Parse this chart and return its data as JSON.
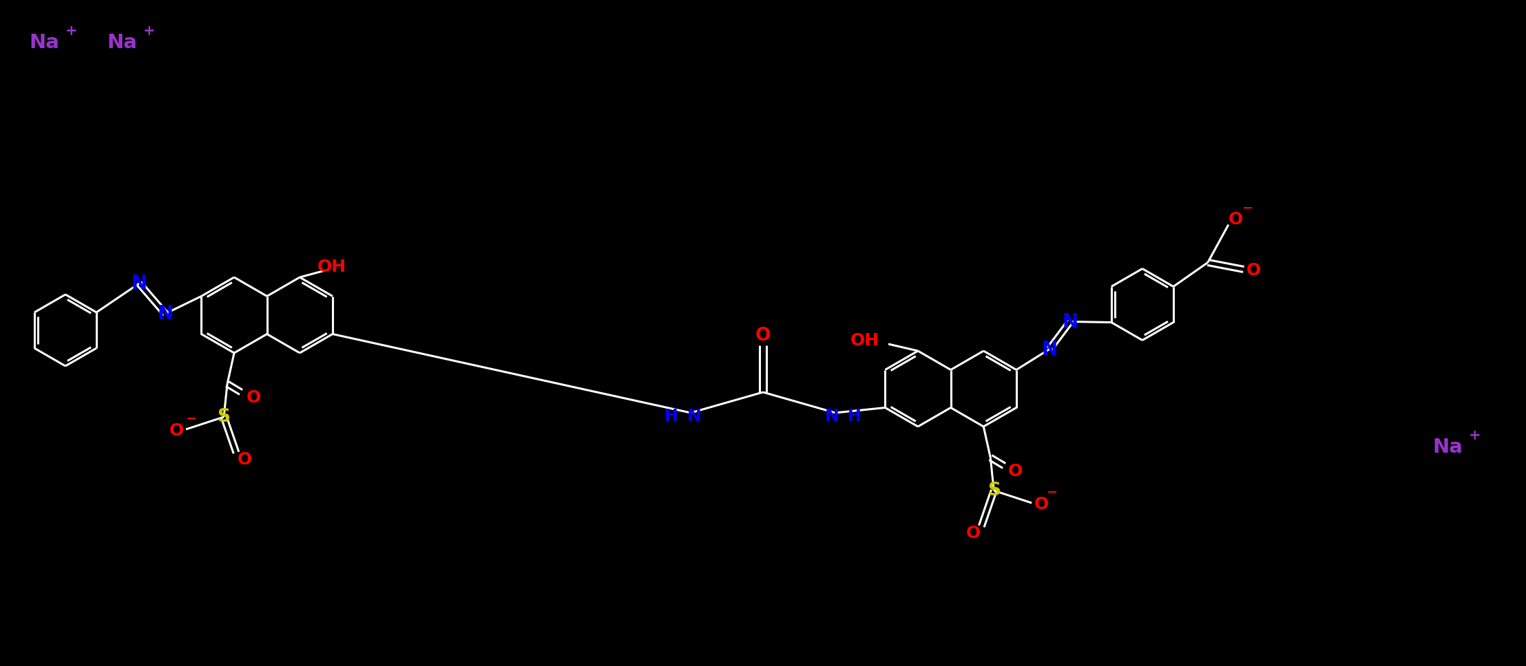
{
  "background_color": "#000000",
  "bond_color": "#ffffff",
  "atom_colors": {
    "N": "#0000ff",
    "O": "#ff0000",
    "S": "#cccc00",
    "Na": "#9933cc",
    "H": "#0000ff",
    "C": "#ffffff"
  },
  "font_size_main": 20,
  "font_size_small": 14,
  "figsize": [
    22.16,
    9.68
  ],
  "dpi": 100,
  "lw": 2.2
}
